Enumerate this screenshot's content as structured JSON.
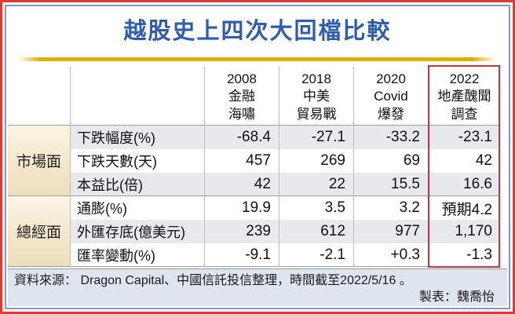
{
  "chart_data": {
    "type": "table",
    "title": "越股史上四次大回檔比較",
    "columns": [
      {
        "lines": [
          "2008",
          "金融",
          "海嘯"
        ],
        "highlighted": false
      },
      {
        "lines": [
          "2018",
          "中美",
          "貿易戰"
        ],
        "highlighted": false
      },
      {
        "lines": [
          "2020",
          "Covid",
          "爆發"
        ],
        "highlighted": false
      },
      {
        "lines": [
          "2022",
          "地產醜聞",
          "調查"
        ],
        "highlighted": true
      }
    ],
    "groups": [
      {
        "name": "市場面",
        "rows": [
          {
            "label": "下跌幅度(%)",
            "values": [
              "-68.4",
              "-27.1",
              "-33.2",
              "-23.1"
            ]
          },
          {
            "label": "下跌天數(天)",
            "values": [
              "457",
              "269",
              "69",
              "42"
            ]
          },
          {
            "label": "本益比(倍)",
            "values": [
              "42",
              "22",
              "15.5",
              "16.6"
            ]
          }
        ]
      },
      {
        "name": "總經面",
        "rows": [
          {
            "label": "通膨(%)",
            "values": [
              "19.9",
              "3.5",
              "3.2",
              "預期4.2"
            ]
          },
          {
            "label": "外匯存底(億美元)",
            "values": [
              "239",
              "612",
              "977",
              "1,170"
            ]
          },
          {
            "label": "匯率變動(%)",
            "values": [
              "-9.1",
              "-2.1",
              "+0.3",
              "-1.3"
            ]
          }
        ]
      }
    ]
  },
  "footer": {
    "source": "資料來源： Dragon Capital、中國信託投信整理，時間截至2022/5/16 。",
    "credit": "製表：魏喬怡"
  },
  "colors": {
    "title_blue": "#2d5db0",
    "gold_underline": "#ddae04",
    "outer_frame_red": "#e4392e",
    "inner_frame_blue": "#7e9cc7",
    "highlight_box_red": "#d2303a",
    "group_cell_beige": "#f3e7cb",
    "stripe_gray": "#e8e9ed",
    "footer_bg": "#dfe5ee"
  }
}
